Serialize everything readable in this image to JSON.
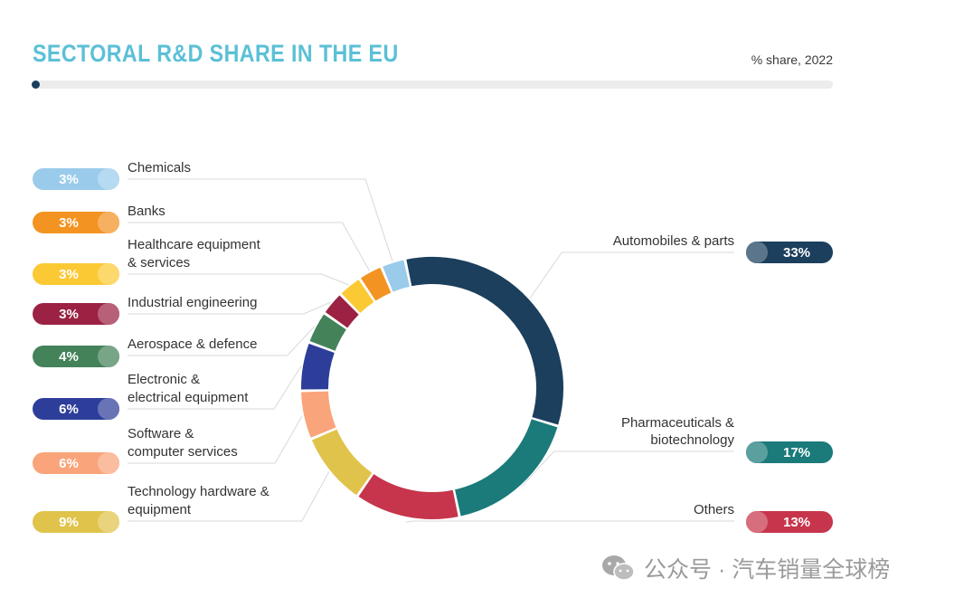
{
  "header": {
    "title": "SECTORAL R&D SHARE IN THE EU",
    "subtitle": "% share, 2022"
  },
  "watermark": {
    "text": "公众号 · 汽车销量全球榜",
    "icon": "wechat-icon"
  },
  "chart_data": {
    "type": "pie",
    "donut": true,
    "title": "SECTORAL R&D SHARE IN THE EU",
    "subtitle": "% share, 2022",
    "unit": "%",
    "slices": [
      {
        "label": "Automobiles & parts",
        "lines": [
          "Automobiles & parts"
        ],
        "value": 33,
        "display": "33%",
        "color": "#1b3f5d",
        "side": "right"
      },
      {
        "label": "Pharmaceuticals & biotechnology",
        "lines": [
          "Pharmaceuticals &",
          "biotechnology"
        ],
        "value": 17,
        "display": "17%",
        "color": "#1b7a7a",
        "side": "right"
      },
      {
        "label": "Others",
        "lines": [
          "Others"
        ],
        "value": 13,
        "display": "13%",
        "color": "#c6354b",
        "side": "right"
      },
      {
        "label": "Technology hardware & equipment",
        "lines": [
          "Technology hardware  &",
          "equipment"
        ],
        "value": 9,
        "display": "9%",
        "color": "#e0c34b",
        "side": "left"
      },
      {
        "label": "Software & computer services",
        "lines": [
          "Software &",
          "computer services"
        ],
        "value": 6,
        "display": "6%",
        "color": "#f9a47a",
        "side": "left"
      },
      {
        "label": "Electronic & electrical equipment",
        "lines": [
          "Electronic &",
          "electrical equipment"
        ],
        "value": 6,
        "display": "6%",
        "color": "#2d3e9a",
        "side": "left"
      },
      {
        "label": "Aerospace & defence",
        "lines": [
          "Aerospace & defence"
        ],
        "value": 4,
        "display": "4%",
        "color": "#44825a",
        "side": "left"
      },
      {
        "label": "Industrial engineering",
        "lines": [
          "Industrial engineering"
        ],
        "value": 3,
        "display": "3%",
        "color": "#9b2242",
        "side": "left"
      },
      {
        "label": "Healthcare equipment & services",
        "lines": [
          "Healthcare equipment",
          "& services"
        ],
        "value": 3,
        "display": "3%",
        "color": "#fbc934",
        "side": "left"
      },
      {
        "label": "Banks",
        "lines": [
          "Banks"
        ],
        "value": 3,
        "display": "3%",
        "color": "#f39322",
        "side": "left"
      },
      {
        "label": "Chemicals",
        "lines": [
          "Chemicals"
        ],
        "value": 3,
        "display": "3%",
        "color": "#9acbeb",
        "side": "left"
      }
    ]
  }
}
